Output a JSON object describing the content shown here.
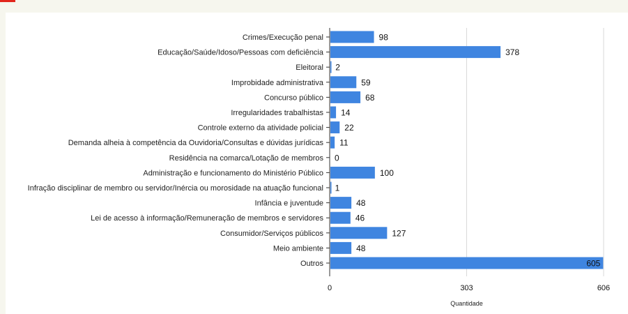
{
  "colors": {
    "bar": "#3f85e0",
    "grid": "#d9d9d9",
    "axis": "#333333",
    "accent": "#e2261c",
    "background": "#f6f6ee"
  },
  "chart_data": {
    "type": "bar",
    "orientation": "horizontal",
    "title": "",
    "xlabel": "Quantidade",
    "ylabel": "",
    "xlim": [
      0,
      606
    ],
    "xticks": [
      "0",
      "303",
      "606"
    ],
    "grid": true,
    "legend": "none",
    "categories": [
      "Crimes/Execução penal",
      "Educação/Saúde/Idoso/Pessoas com deficiência",
      "Eleitoral",
      "Improbidade administrativa",
      "Concurso público",
      "Irregularidades trabalhistas",
      "Controle externo da atividade policial",
      "Demanda alheia à competência da Ouvidoria/Consultas e dúvidas jurídicas",
      "Residência na comarca/Lotação de membros",
      "Administração e funcionamento do Ministério Público",
      "Infração disciplinar de membro ou servidor/Inércia ou morosidade na atuação funcional",
      "Infância e juventude",
      "Lei de acesso à informação/Remuneração de membros e servidores",
      "Consumidor/Serviços públicos",
      "Meio ambiente",
      "Outros"
    ],
    "values": [
      98,
      378,
      2,
      59,
      68,
      14,
      22,
      11,
      0,
      100,
      1,
      48,
      46,
      127,
      48,
      605
    ]
  }
}
